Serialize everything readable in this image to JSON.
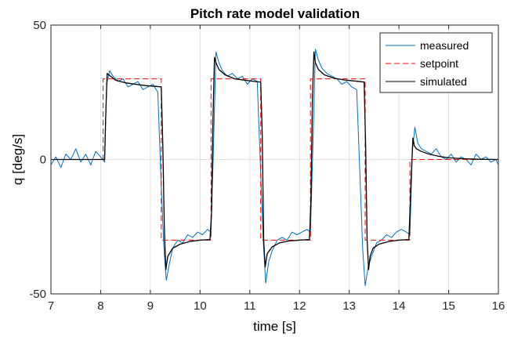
{
  "chart_data": {
    "type": "line",
    "title": "Pitch rate model validation",
    "xlabel": "time [s]",
    "ylabel": "q [deg/s]",
    "xlim": [
      7,
      16
    ],
    "ylim": [
      -50,
      50
    ],
    "xticks": [
      "7",
      "8",
      "9",
      "10",
      "11",
      "12",
      "13",
      "14",
      "15",
      "16"
    ],
    "yticks": [
      "-50",
      "0",
      "50"
    ],
    "grid": true,
    "legend_position": "top-right",
    "series": [
      {
        "name": "measured",
        "color": "#0072BD",
        "style": "solid",
        "x": [
          7.0,
          7.1,
          7.2,
          7.3,
          7.4,
          7.5,
          7.6,
          7.7,
          7.8,
          7.9,
          8.0,
          8.08,
          8.12,
          8.18,
          8.25,
          8.35,
          8.45,
          8.55,
          8.65,
          8.75,
          8.85,
          8.95,
          9.05,
          9.15,
          9.22,
          9.27,
          9.32,
          9.38,
          9.45,
          9.55,
          9.65,
          9.75,
          9.85,
          9.95,
          10.05,
          10.15,
          10.22,
          10.27,
          10.32,
          10.38,
          10.45,
          10.55,
          10.65,
          10.75,
          10.85,
          10.95,
          11.05,
          11.15,
          11.22,
          11.27,
          11.32,
          11.38,
          11.45,
          11.55,
          11.65,
          11.75,
          11.85,
          11.95,
          12.05,
          12.15,
          12.22,
          12.27,
          12.32,
          12.38,
          12.45,
          12.55,
          12.65,
          12.75,
          12.85,
          12.95,
          13.05,
          13.15,
          13.22,
          13.27,
          13.32,
          13.38,
          13.45,
          13.55,
          13.65,
          13.75,
          13.85,
          13.95,
          14.05,
          14.15,
          14.22,
          14.27,
          14.32,
          14.38,
          14.45,
          14.55,
          14.65,
          14.75,
          14.85,
          14.95,
          15.05,
          15.15,
          15.25,
          15.35,
          15.45,
          15.55,
          15.65,
          15.75,
          15.85,
          15.95,
          16.0
        ],
        "y": [
          -2,
          1,
          -3,
          2,
          0,
          4,
          -1,
          2,
          -2,
          3,
          1,
          -1,
          28,
          33,
          31,
          29,
          30,
          27,
          28,
          29,
          26,
          27,
          28,
          25,
          -10,
          -32,
          -45,
          -39,
          -33,
          -30,
          -31,
          -28,
          -29,
          -27,
          -28,
          -26,
          -27,
          5,
          40,
          36,
          33,
          31,
          32,
          30,
          31,
          28,
          30,
          29,
          -5,
          -30,
          -46,
          -38,
          -34,
          -30,
          -29,
          -30,
          -27,
          -28,
          -27,
          -26,
          -27,
          6,
          41,
          37,
          34,
          32,
          31,
          30,
          28,
          29,
          27,
          26,
          -8,
          -33,
          -47,
          -40,
          -36,
          -31,
          -30,
          -28,
          -29,
          -27,
          -26,
          -27,
          -28,
          3,
          12,
          6,
          4,
          3,
          2,
          4,
          1,
          0,
          2,
          -1,
          1,
          0,
          -2,
          2,
          0,
          1,
          -1,
          0,
          -2
        ]
      },
      {
        "name": "setpoint",
        "color": "#FF0000",
        "style": "dashed",
        "x": [
          7.0,
          8.05,
          8.05,
          9.22,
          9.22,
          10.22,
          10.22,
          11.22,
          11.22,
          12.22,
          12.22,
          13.32,
          13.32,
          14.22,
          14.22,
          16.0
        ],
        "y": [
          0,
          0,
          30,
          30,
          -30,
          -30,
          30,
          30,
          -30,
          -30,
          30,
          30,
          -30,
          -30,
          0,
          0
        ]
      },
      {
        "name": "simulated",
        "color": "#000000",
        "style": "solid",
        "x": [
          7.0,
          8.08,
          8.1,
          8.13,
          8.2,
          8.3,
          8.5,
          8.7,
          8.9,
          9.1,
          9.22,
          9.25,
          9.28,
          9.31,
          9.35,
          9.45,
          9.6,
          9.8,
          10.0,
          10.2,
          10.23,
          10.26,
          10.29,
          10.32,
          10.38,
          10.5,
          10.7,
          10.9,
          11.1,
          11.22,
          11.25,
          11.28,
          11.31,
          11.35,
          11.45,
          11.6,
          11.8,
          12.0,
          12.2,
          12.23,
          12.26,
          12.29,
          12.32,
          12.38,
          12.5,
          12.7,
          12.9,
          13.1,
          13.3,
          13.33,
          13.36,
          13.39,
          13.42,
          13.48,
          13.6,
          13.8,
          14.0,
          14.2,
          14.25,
          14.28,
          14.31,
          14.35,
          14.45,
          14.6,
          14.8,
          15.0,
          15.3,
          15.6,
          16.0
        ],
        "y": [
          0,
          0,
          15,
          32,
          31,
          29.5,
          28.5,
          28,
          27.5,
          27.2,
          27,
          5,
          -25,
          -41,
          -36,
          -33,
          -31.5,
          -30.5,
          -30,
          -29.8,
          -20,
          15,
          38,
          36,
          33.5,
          31.5,
          30,
          29.5,
          29,
          28.8,
          10,
          -30,
          -40,
          -35,
          -32.5,
          -31,
          -30.3,
          -30,
          -29.8,
          -15,
          22,
          40,
          36,
          33.5,
          31.5,
          30.2,
          29.6,
          29.2,
          28.8,
          5,
          -30,
          -41,
          -36,
          -33,
          -31.5,
          -30.5,
          -30,
          -29.8,
          -5,
          8,
          5,
          4,
          3,
          2,
          1.2,
          0.6,
          0.3,
          0.1,
          0
        ]
      }
    ]
  }
}
